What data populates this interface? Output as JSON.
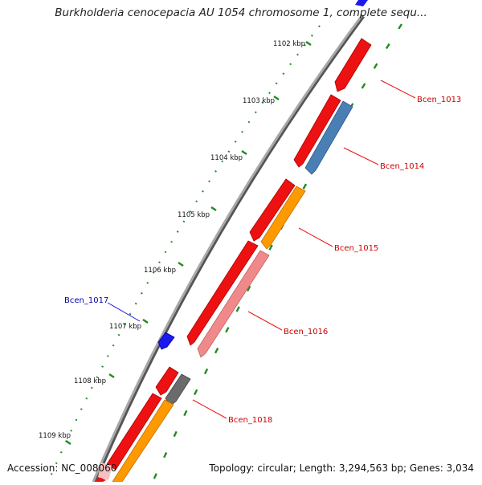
{
  "title": "Burkholderia cenocepacia AU 1054 chromosome 1, complete sequ...",
  "footer": {
    "accession": "Accession: NC_008060",
    "summary": "Topology: circular; Length: 3,294,563 bp; Genes: 3,034"
  },
  "colors": {
    "backbone": "#8a8a8a",
    "tick_dots": "#228b22",
    "label_red": "#cc0000",
    "label_blue": "#0000aa",
    "gene_red": "#ee1111",
    "gene_steelblue": "#4a7fb5",
    "gene_orange": "#ff9900",
    "gene_pink": "#f08a8a",
    "gene_grey": "#6b6b6b",
    "gene_blue": "#1a1aee"
  },
  "ticks": [
    {
      "label": "1102 kbp"
    },
    {
      "label": "1103 kbp"
    },
    {
      "label": "1104 kbp"
    },
    {
      "label": "1105 kbp"
    },
    {
      "label": "1106 kbp"
    },
    {
      "label": "1107 kbp"
    },
    {
      "label": "1108 kbp"
    },
    {
      "label": "1109 kbp"
    }
  ],
  "gene_labels": [
    {
      "label": "Bcen_1013"
    },
    {
      "label": "Bcen_1014"
    },
    {
      "label": "Bcen_1015"
    },
    {
      "label": "Bcen_1016"
    },
    {
      "label": "Bcen_1017"
    },
    {
      "label": "Bcen_1018"
    }
  ]
}
